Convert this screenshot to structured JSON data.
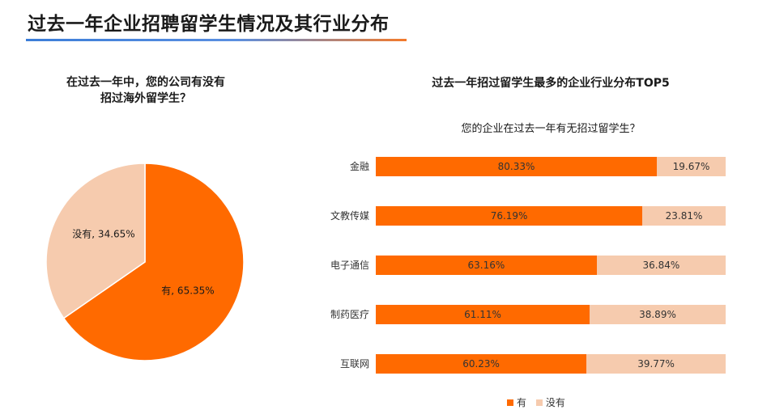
{
  "page": {
    "title": "过去一年企业招聘留学生情况及其行业分布"
  },
  "colors": {
    "yes": "#ff6a00",
    "no": "#f6cbae",
    "underline_start": "#3b7dd8",
    "underline_end": "#f47a2a"
  },
  "chart_data": [
    {
      "type": "pie",
      "title": "在过去一年中，您的公司有没有招过海外留学生？",
      "title_lines": [
        "在过去一年中，您的公司有没有",
        "招过海外留学生？"
      ],
      "slices": [
        {
          "name": "有",
          "value": 65.35,
          "label": "有, 65.35%",
          "color": "#ff6a00"
        },
        {
          "name": "没有",
          "value": 34.65,
          "label": "没有, 34.65%",
          "color": "#f6cbae"
        }
      ]
    },
    {
      "type": "bar",
      "orientation": "horizontal",
      "stacked": true,
      "title": "过去一年招过留学生最多的企业行业分布TOP5",
      "subtitle": "您的企业在过去一年有无招过留学生？",
      "categories": [
        "金融",
        "文教传媒",
        "电子通信",
        "制药医疗",
        "互联网"
      ],
      "series": [
        {
          "name": "有",
          "values": [
            80.33,
            76.19,
            63.16,
            61.11,
            60.23
          ],
          "labels": [
            "80.33%",
            "76.19%",
            "63.16%",
            "61.11%",
            "60.23%"
          ],
          "color": "#ff6a00"
        },
        {
          "name": "没有",
          "values": [
            19.67,
            23.81,
            36.84,
            38.89,
            39.77
          ],
          "labels": [
            "19.67%",
            "23.81%",
            "36.84%",
            "38.89%",
            "39.77%"
          ],
          "color": "#f6cbae"
        }
      ],
      "legend_position": "bottom"
    }
  ]
}
